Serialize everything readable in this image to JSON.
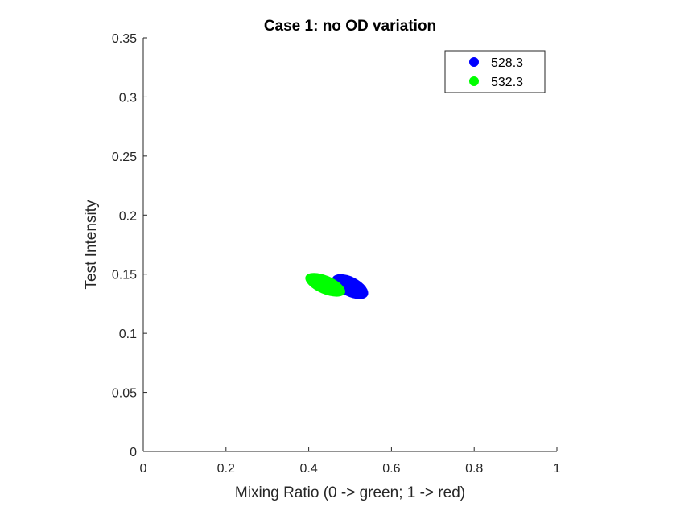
{
  "chart_data": {
    "type": "scatter",
    "title": "Case 1: no OD variation",
    "xlabel": "Mixing Ratio (0 -> green; 1 -> red)",
    "ylabel": "Test Intensity",
    "xlim": [
      0,
      1
    ],
    "ylim": [
      0,
      0.35
    ],
    "x_ticks": [
      0,
      0.2,
      0.4,
      0.6,
      0.8,
      1
    ],
    "x_tick_labels": [
      "0",
      "0.2",
      "0.4",
      "0.6",
      "0.8",
      "1"
    ],
    "y_ticks": [
      0,
      0.05,
      0.1,
      0.15,
      0.2,
      0.25,
      0.3,
      0.35
    ],
    "y_tick_labels": [
      "0",
      "0.05",
      "0.1",
      "0.15",
      "0.2",
      "0.25",
      "0.3",
      "0.35"
    ],
    "grid": false,
    "legend_position": "top-right",
    "series": [
      {
        "name": "528.3",
        "color": "#0000ff",
        "cloud": {
          "center_x": 0.5,
          "center_y": 0.1395,
          "x_range": [
            0.46,
            0.545
          ],
          "y_range": [
            0.132,
            0.147
          ],
          "orientation": "negative-slope"
        }
      },
      {
        "name": "532.3",
        "color": "#00ff00",
        "cloud": {
          "center_x": 0.44,
          "center_y": 0.141,
          "x_range": [
            0.395,
            0.49
          ],
          "y_range": [
            0.134,
            0.148
          ],
          "orientation": "negative-slope"
        }
      }
    ]
  }
}
